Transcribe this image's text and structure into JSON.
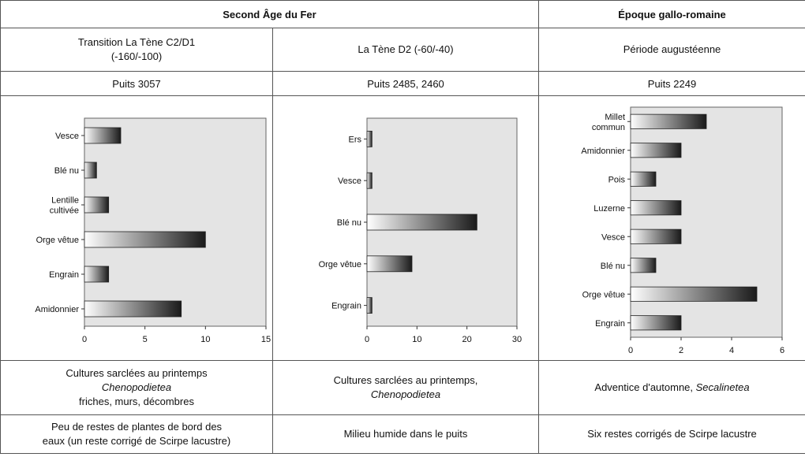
{
  "header": {
    "iron_age": "Second Âge du Fer",
    "gallo_roman": "Époque gallo-romaine"
  },
  "periods": [
    {
      "line1": "Transition La Tène C2/D1",
      "line2": "(-160/-100)"
    },
    {
      "line1": "La Tène D2 (-60/-40)",
      "line2": ""
    },
    {
      "line1": "Période augustéenne",
      "line2": ""
    }
  ],
  "wells": [
    "Puits 3057",
    "Puits 2485, 2460",
    "Puits 2249"
  ],
  "ecology": [
    {
      "line1": "Cultures sarclées au printemps",
      "italic": "Chenopodietea",
      "line3": "friches, murs, décombres"
    },
    {
      "line1": "Cultures sarclées au printemps,",
      "italic": "Chenopodietea",
      "line3": ""
    },
    {
      "prefix": "Adventice d'automne, ",
      "italic": "Secalinetea"
    }
  ],
  "remarks": [
    {
      "line1": "Peu de restes de plantes de bord des",
      "line2": "eaux (un reste corrigé de Scirpe lacustre)"
    },
    {
      "line1": "Milieu humide dans le puits",
      "line2": ""
    },
    {
      "line1": "Six restes corrigés de Scirpe lacustre",
      "line2": ""
    }
  ],
  "chart_data": [
    {
      "type": "bar",
      "orientation": "horizontal",
      "categories": [
        [
          "Vesce"
        ],
        [
          "Blé nu"
        ],
        [
          "Lentille",
          "cultivée"
        ],
        [
          "Orge vêtue"
        ],
        [
          "Engrain"
        ],
        [
          "Amidonnier"
        ]
      ],
      "values": [
        3,
        1,
        2,
        10,
        2,
        8
      ],
      "xlim": [
        0,
        15
      ],
      "xticks": [
        0,
        5,
        10,
        15
      ]
    },
    {
      "type": "bar",
      "orientation": "horizontal",
      "categories": [
        [
          "Ers"
        ],
        [
          "Vesce"
        ],
        [
          "Blé nu"
        ],
        [
          "Orge vêtue"
        ],
        [
          "Engrain"
        ]
      ],
      "values": [
        1,
        1,
        22,
        9,
        1
      ],
      "xlim": [
        0,
        30
      ],
      "xticks": [
        0,
        10,
        20,
        30
      ]
    },
    {
      "type": "bar",
      "orientation": "horizontal",
      "categories": [
        [
          "Millet",
          "commun"
        ],
        [
          "Amidonnier"
        ],
        [
          "Pois"
        ],
        [
          "Luzerne"
        ],
        [
          "Vesce"
        ],
        [
          "Blé nu"
        ],
        [
          "Orge vêtue"
        ],
        [
          "Engrain"
        ]
      ],
      "values": [
        3,
        2,
        1,
        2,
        2,
        1,
        5,
        2
      ],
      "xlim": [
        0,
        6
      ],
      "xticks": [
        0,
        2,
        4,
        6
      ]
    }
  ],
  "colors": {
    "plot_bg": "#e4e4e4",
    "bar_dark": "#1a1a1a",
    "bar_light": "#ffffff",
    "border": "#555555"
  }
}
